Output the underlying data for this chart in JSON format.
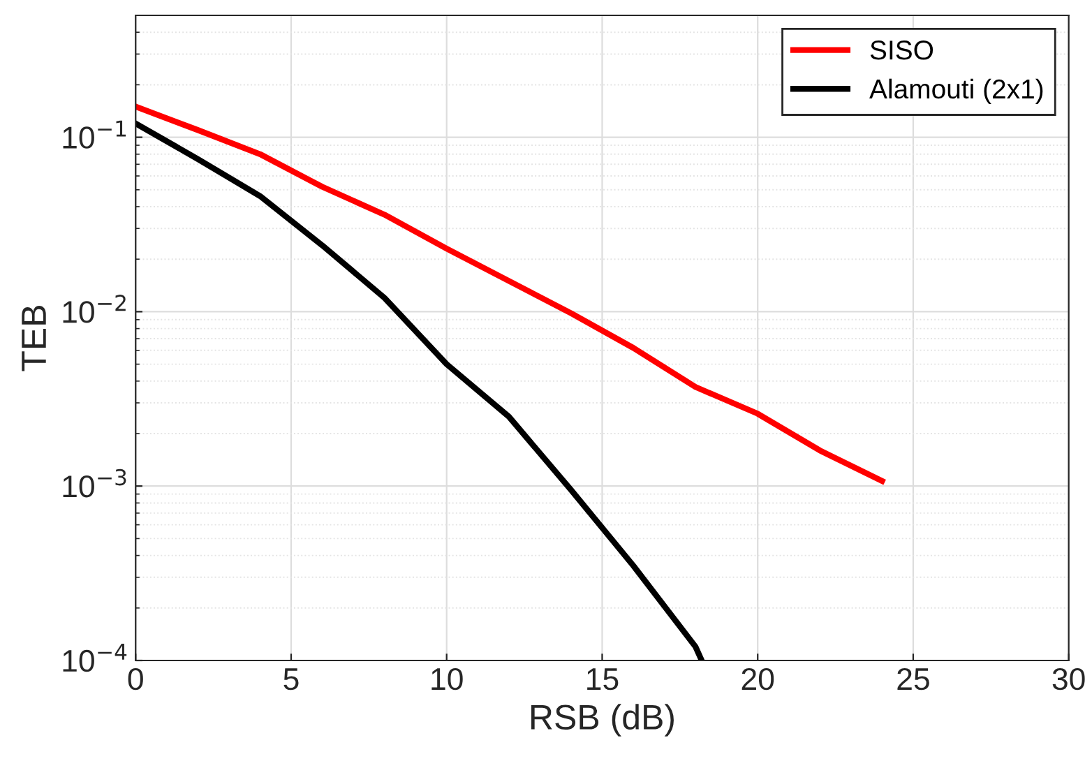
{
  "chart_data": {
    "type": "line",
    "xlabel": "RSB (dB)",
    "ylabel": "TEB",
    "log": "y",
    "grid": true,
    "legend": "top right",
    "line_style": "solid",
    "marker": "none",
    "xlim": [
      0,
      30
    ],
    "xticks": [
      0,
      5,
      10,
      15,
      20,
      25,
      30
    ],
    "ylim": [
      0.0001,
      0.5
    ],
    "yticks": [
      {
        "value": 0.0001,
        "label": "10$^{−4}$"
      },
      {
        "value": 0.001,
        "label": "10$^{−3}$"
      },
      {
        "value": 0.01,
        "label": "10$^{−2}$"
      },
      {
        "value": 0.1,
        "label": "10$^{−1}$"
      }
    ],
    "series": [
      {
        "name": "SISO",
        "color": "#ff0000",
        "x": [
          0,
          2,
          4,
          6,
          8,
          10,
          12,
          14,
          16,
          18,
          20,
          22,
          24
        ],
        "values": [
          0.15,
          0.11,
          0.08,
          0.052,
          0.036,
          0.023,
          0.015,
          0.0098,
          0.0062,
          0.0037,
          0.0026,
          0.0016,
          0.00107
        ]
      },
      {
        "name": "Alamouti (2x1)",
        "color": "#000000",
        "x": [
          0,
          2,
          4,
          6,
          8,
          10,
          12,
          14,
          16,
          18,
          18.2
        ],
        "values": [
          0.12,
          0.075,
          0.046,
          0.024,
          0.012,
          0.005,
          0.0025,
          0.00095,
          0.00035,
          0.00012,
          0.0001
        ]
      }
    ]
  }
}
